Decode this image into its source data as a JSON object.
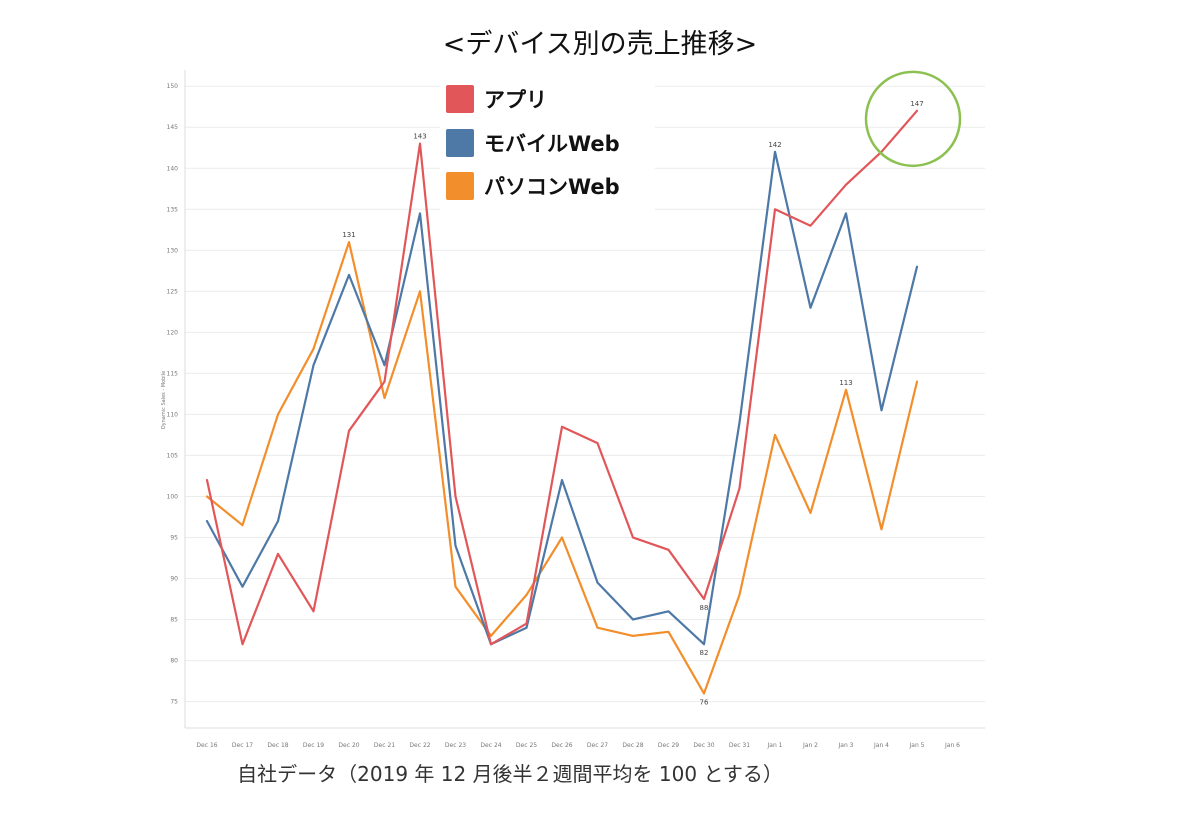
{
  "title": "<デバイス別の売上推移>",
  "caption": "自社データ（2019 年 12 月後半２週間平均を 100 とする）",
  "legend": {
    "items": [
      {
        "label": "アプリ",
        "color": "#e15759"
      },
      {
        "label": "モバイルWeb",
        "color": "#4e79a7"
      },
      {
        "label": "パソコンWeb",
        "color": "#f28e2b"
      }
    ]
  },
  "highlight": {
    "color": "#8cc152"
  },
  "chart_data": {
    "type": "line",
    "title": "<デバイス別の売上推移>",
    "xlabel": "",
    "ylabel": "Dynamic Sales - Mobile",
    "ylim": [
      73,
      151
    ],
    "yticks": [
      75,
      80,
      85,
      90,
      95,
      100,
      105,
      110,
      115,
      120,
      125,
      130,
      135,
      140,
      145,
      150
    ],
    "categories": [
      "Dec 16",
      "Dec 17",
      "Dec 18",
      "Dec 19",
      "Dec 20",
      "Dec 21",
      "Dec 22",
      "Dec 23",
      "Dec 24",
      "Dec 25",
      "Dec 26",
      "Dec 27",
      "Dec 28",
      "Dec 29",
      "Dec 30",
      "Dec 31",
      "Jan 1",
      "Jan 2",
      "Jan 3",
      "Jan 4",
      "Jan 5",
      "Jan 6"
    ],
    "series": [
      {
        "name": "アプリ",
        "color": "#e15759",
        "values": [
          102,
          82,
          93,
          86,
          108,
          114,
          143,
          100,
          82,
          84.5,
          108.5,
          106.5,
          95,
          93.5,
          87.5,
          101,
          135,
          133,
          138,
          142,
          147,
          null
        ]
      },
      {
        "name": "モバイルWeb",
        "color": "#4e79a7",
        "values": [
          97,
          89,
          97,
          116,
          127,
          116,
          134.5,
          94,
          82,
          84,
          102,
          89.5,
          85,
          86,
          82,
          109,
          142,
          123,
          134.5,
          110.5,
          128,
          null
        ]
      },
      {
        "name": "パソコンWeb",
        "color": "#f28e2b",
        "values": [
          100,
          96.5,
          110,
          118,
          131,
          112,
          125,
          89,
          83,
          88,
          95,
          84,
          83,
          83.5,
          76,
          88,
          107.5,
          98,
          113,
          96,
          114,
          null
        ]
      }
    ],
    "annotations": [
      {
        "series": 0,
        "index": 6,
        "text": "143"
      },
      {
        "series": 2,
        "index": 4,
        "text": "131"
      },
      {
        "series": 1,
        "index": 16,
        "text": "142"
      },
      {
        "series": 0,
        "index": 20,
        "text": "147"
      },
      {
        "series": 2,
        "index": 18,
        "text": "113"
      },
      {
        "series": 0,
        "index": 14,
        "text": "88"
      },
      {
        "series": 1,
        "index": 14,
        "text": "82"
      },
      {
        "series": 2,
        "index": 14,
        "text": "76"
      }
    ]
  }
}
